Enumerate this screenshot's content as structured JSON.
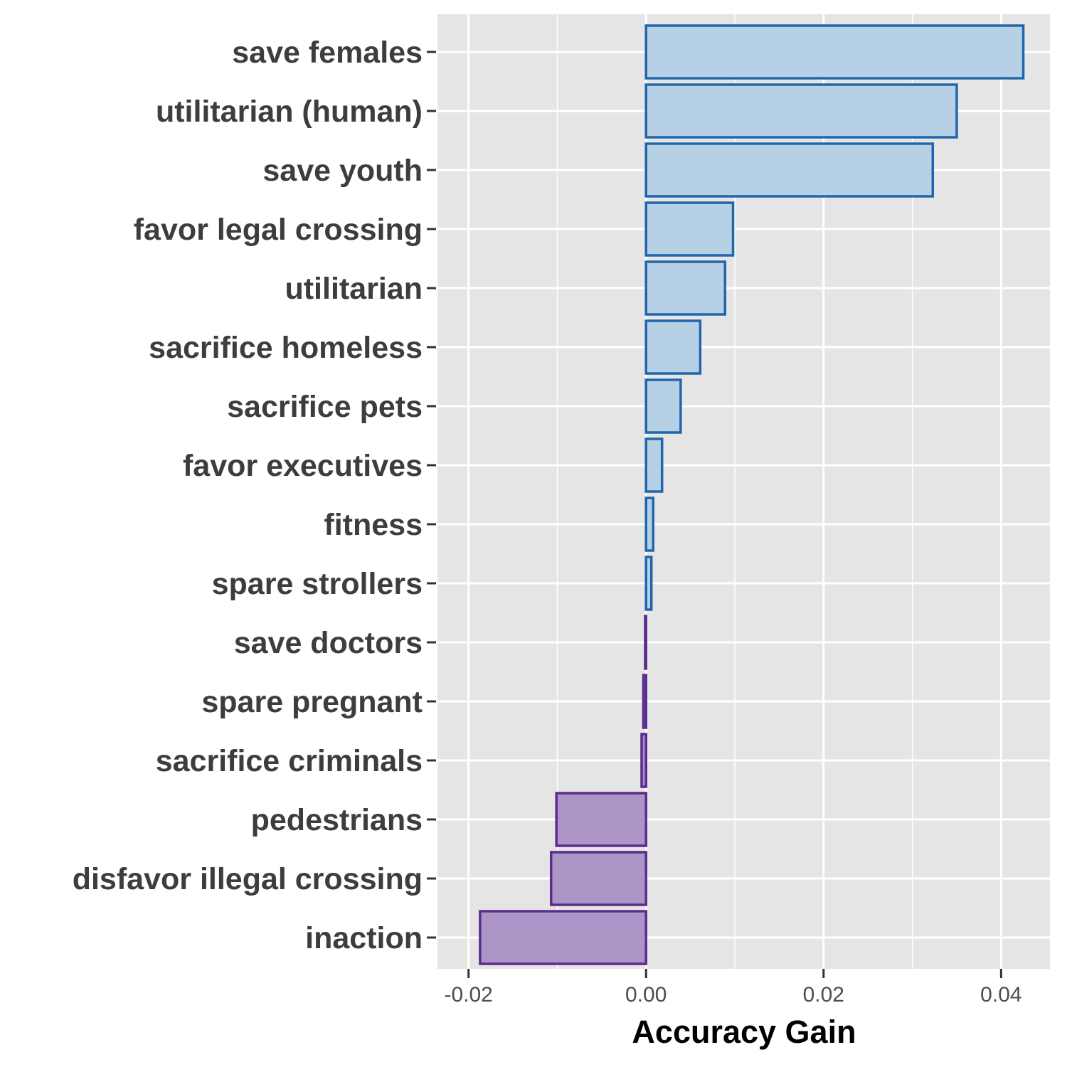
{
  "chart_data": {
    "type": "bar",
    "orientation": "horizontal",
    "xlabel": "Accuracy Gain",
    "ylabel": "",
    "title": "",
    "xlim": [
      -0.0235,
      0.0455
    ],
    "x_ticks": [
      -0.02,
      0.0,
      0.02,
      0.04
    ],
    "x_tick_labels": [
      "-0.02",
      "0.00",
      "0.02",
      "0.04"
    ],
    "grid": true,
    "legend": "none",
    "categories": [
      "save females",
      "utilitarian (human)",
      "save youth",
      "favor legal crossing",
      "utilitarian",
      "sacrifice homeless",
      "sacrifice pets",
      "favor executives",
      "fitness",
      "spare strollers",
      "save doctors",
      "spare pregnant",
      "sacrifice criminals",
      "pedestrians",
      "disfavor illegal crossing",
      "inaction"
    ],
    "values": [
      0.0425,
      0.035,
      0.0323,
      0.0098,
      0.0089,
      0.0061,
      0.0039,
      0.0018,
      0.0008,
      0.0006,
      -0.0001,
      -0.0003,
      -0.0005,
      -0.0101,
      -0.0107,
      -0.0187
    ],
    "colors": {
      "positive_fill": "#b6d1e6",
      "positive_stroke": "#2166ac",
      "negative_fill": "#ab94c6",
      "negative_stroke": "#5b2c8e",
      "panel_bg": "#e5e5e5",
      "grid": "#ffffff"
    }
  }
}
